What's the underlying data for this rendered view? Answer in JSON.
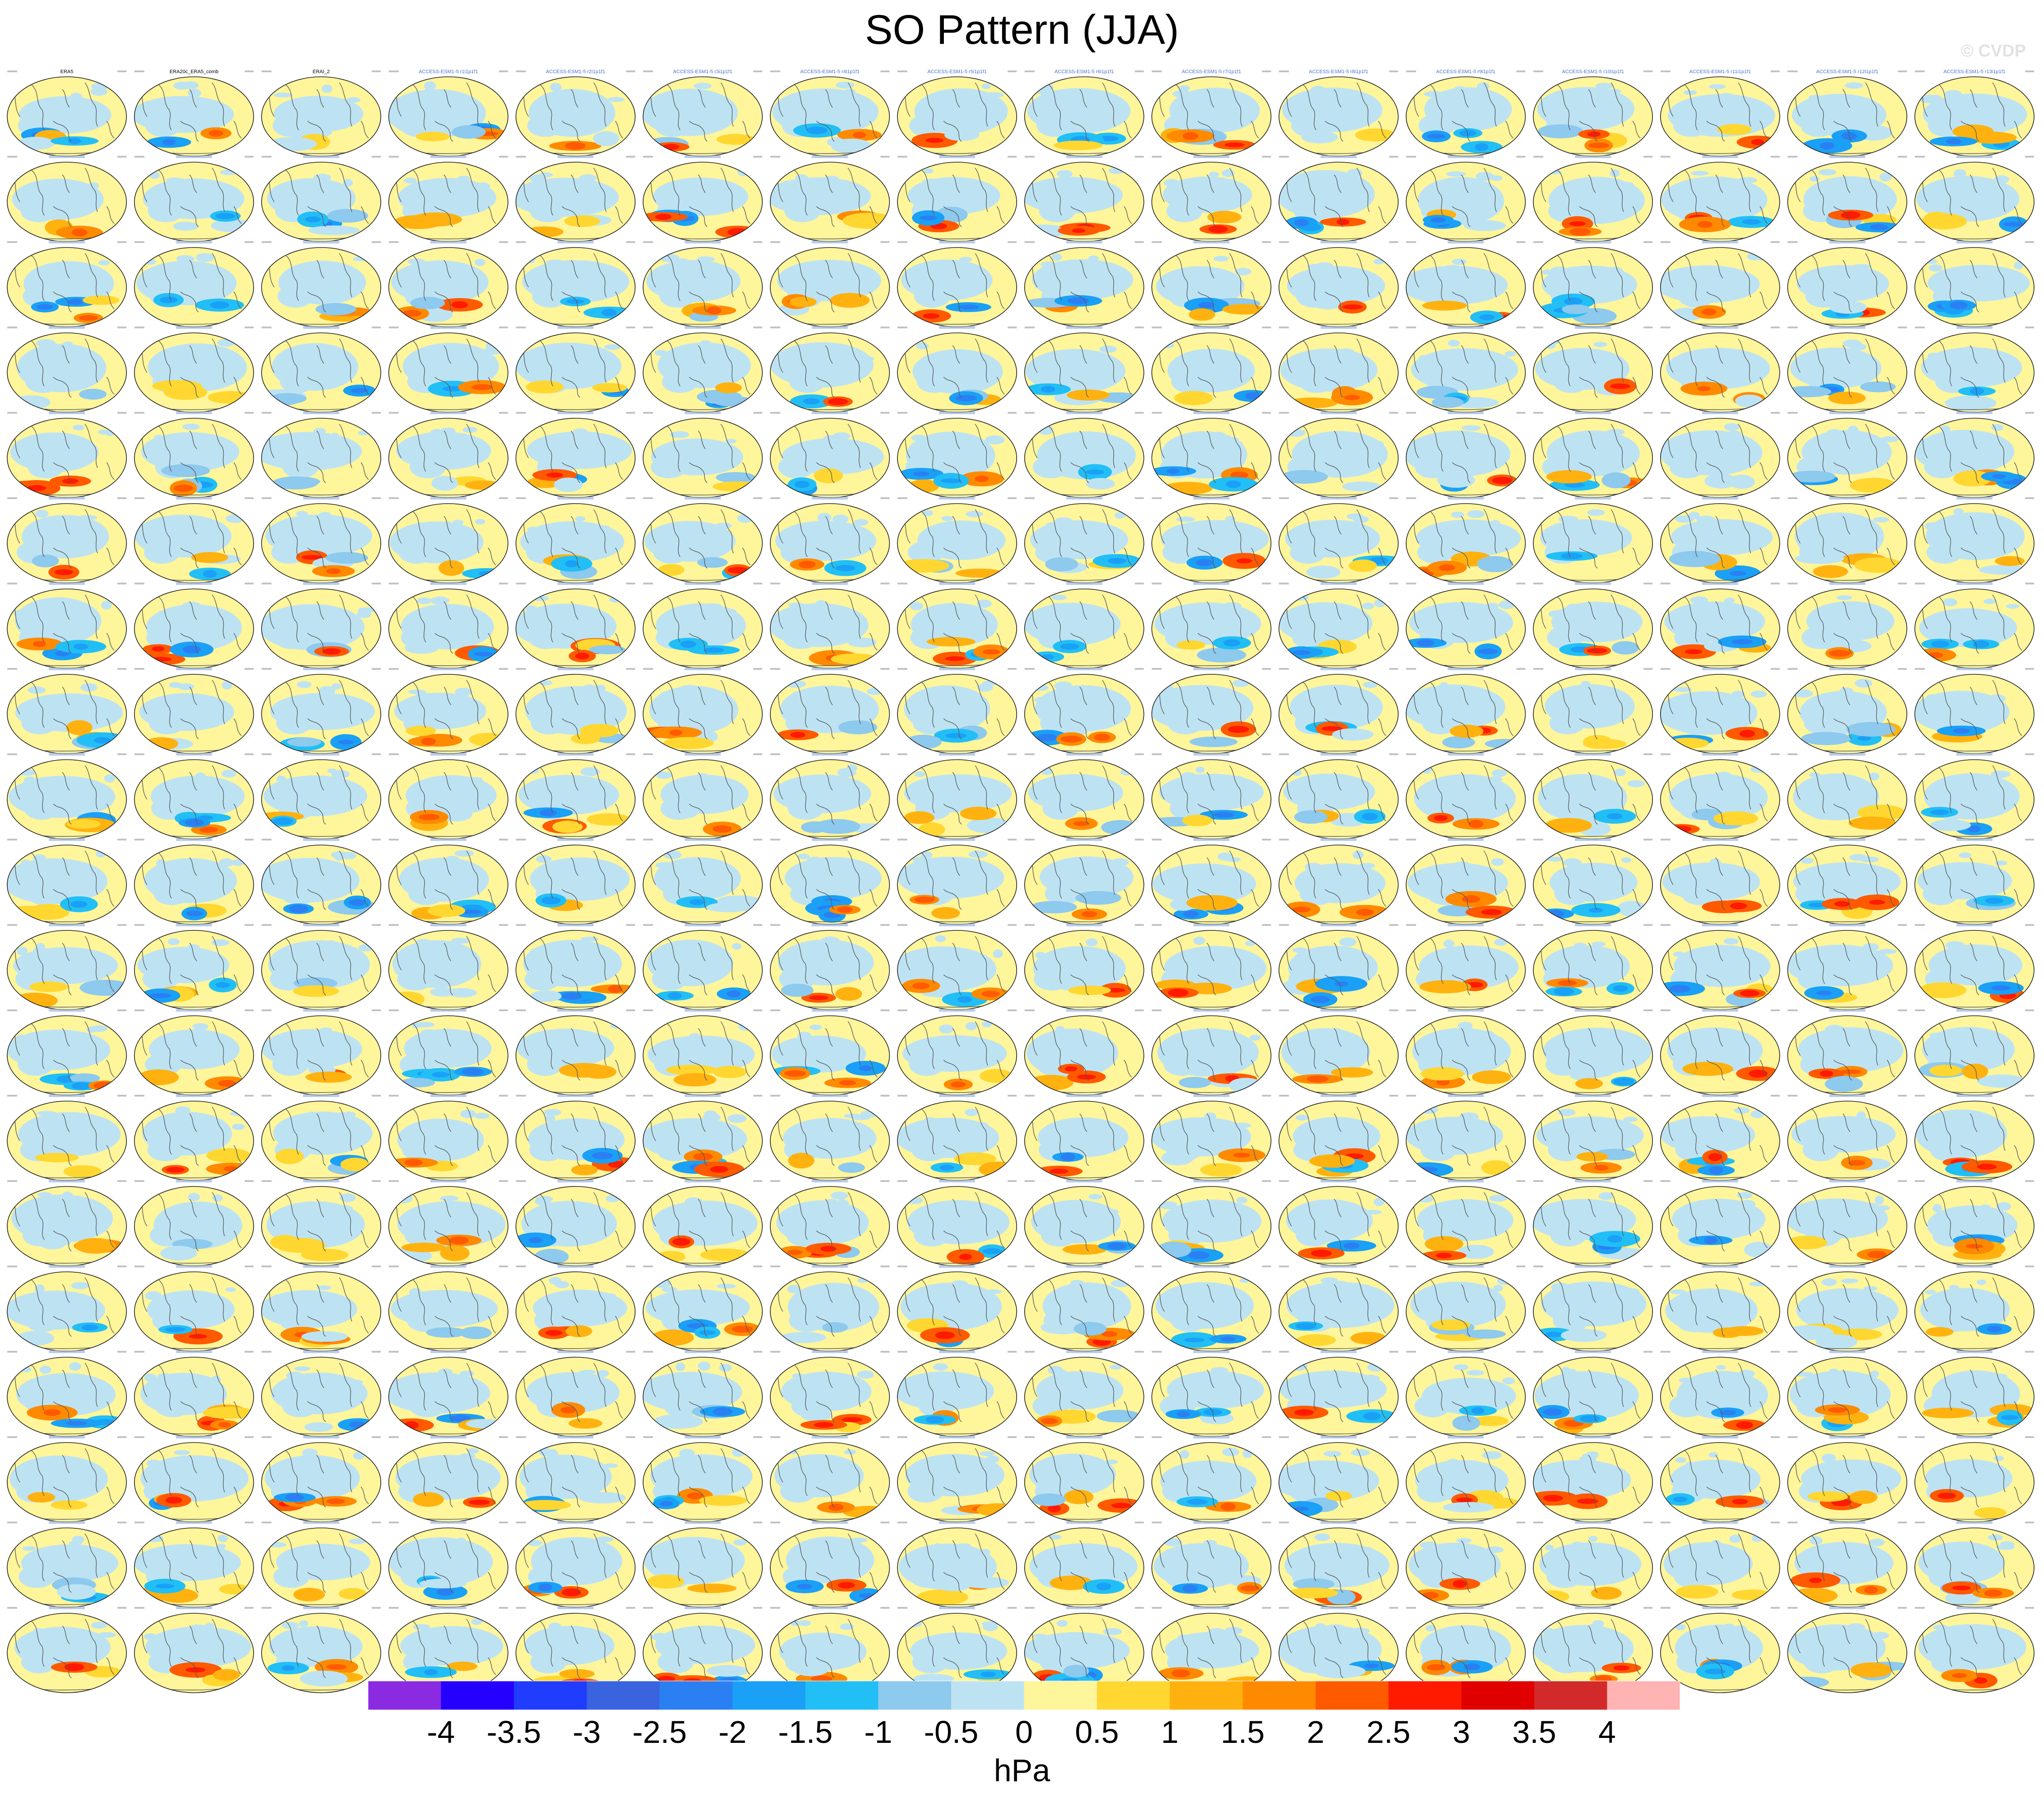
{
  "chart_data": {
    "type": "heatmap",
    "title": "SO Pattern (JJA)",
    "watermark": "© CVDP",
    "grid": {
      "rows": 19,
      "cols": 16
    },
    "panel_titles_row1": [
      "ERA5",
      "ERA20c_ERA5_comb",
      "ERAI_2",
      "ACCESS-ESM1-5 r1i1p1f1",
      "ACCESS-ESM1-5 r2i1p1f1",
      "ACCESS-ESM1-5 r3i1p1f1",
      "ACCESS-ESM1-5 r4i1p1f1",
      "ACCESS-ESM1-5 r5i1p1f1",
      "ACCESS-ESM1-5 r6i1p1f1",
      "ACCESS-ESM1-5 r7i1p1f1",
      "ACCESS-ESM1-5 r8i1p1f1",
      "ACCESS-ESM1-5 r9i1p1f1",
      "ACCESS-ESM1-5 r10i1p1f1",
      "ACCESS-ESM1-5 r11i1p1f1",
      "ACCESS-ESM1-5 r12i1p1f1",
      "ACCESS-ESM1-5 r13i1p1f1"
    ],
    "colorbar": {
      "units": "hPa",
      "levels": [
        -4,
        -3.5,
        -3,
        -2.5,
        -2,
        -1.5,
        -1,
        -0.5,
        0,
        0.5,
        1,
        1.5,
        2,
        2.5,
        3,
        3.5,
        4
      ],
      "level_labels": [
        "-4",
        "-3.5",
        "-3",
        "-2.5",
        "-2",
        "-1.5",
        "-1",
        "-0.5",
        "0",
        "0.5",
        "1",
        "1.5",
        "2",
        "2.5",
        "3",
        "3.5",
        "4"
      ],
      "colors": [
        "#8a2be2",
        "#2600ff",
        "#1f3cff",
        "#3a63e0",
        "#2a80f2",
        "#1aa0f6",
        "#22bff6",
        "#8ec9ee",
        "#bde3f3",
        "#fff59a",
        "#ffd730",
        "#ffb20f",
        "#ff8a00",
        "#ff5a00",
        "#ff1a00",
        "#e00000",
        "#d22a2a",
        "#ffb3b3"
      ]
    },
    "colors": {
      "land": "#fff59a",
      "coast": "#5a5a5a",
      "panel_title_obs": "#000000",
      "panel_title_model": "#4a72c4"
    }
  }
}
